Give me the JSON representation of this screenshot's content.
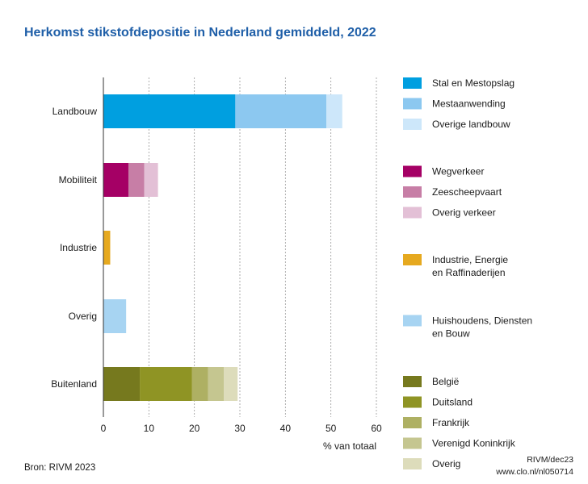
{
  "chart_data": {
    "type": "bar",
    "orientation": "horizontal",
    "stacked": true,
    "title": "Herkomst stikstofdepositie in Nederland gemiddeld, 2022",
    "xlabel": "% van totaal",
    "ylabel": "",
    "xlim": [
      0,
      60
    ],
    "xticks": [
      0,
      10,
      20,
      30,
      40,
      50,
      60
    ],
    "grid": "vertical",
    "legend_position": "right",
    "categories": [
      "Landbouw",
      "Mobiliteit",
      "Industrie",
      "Overig",
      "Buitenland"
    ],
    "series": [
      {
        "name": "Stal en Mestopslag",
        "category": "Landbouw",
        "value": 29,
        "color": "#009fe0"
      },
      {
        "name": "Mestaanwending",
        "category": "Landbouw",
        "value": 20,
        "color": "#8cc8f0"
      },
      {
        "name": "Overige landbouw",
        "category": "Landbouw",
        "value": 3.5,
        "color": "#cde7fa"
      },
      {
        "name": "Wegverkeer",
        "category": "Mobiliteit",
        "value": 5.5,
        "color": "#a50065"
      },
      {
        "name": "Zeescheepvaart",
        "category": "Mobiliteit",
        "value": 3.5,
        "color": "#c77ea6"
      },
      {
        "name": "Overig verkeer",
        "category": "Mobiliteit",
        "value": 3,
        "color": "#e3c0d6"
      },
      {
        "name": "Industrie, Energie en Raffinaderijen",
        "label_lines": [
          "Industrie, Energie",
          "en Raffinaderijen"
        ],
        "category": "Industrie",
        "value": 1.5,
        "color": "#e6a91f"
      },
      {
        "name": "Huishoudens, Diensten en Bouw",
        "label_lines": [
          "Huishoudens, Diensten",
          "en Bouw"
        ],
        "category": "Overig",
        "value": 5,
        "color": "#a7d4f2"
      },
      {
        "name": "België",
        "category": "Buitenland",
        "value": 8,
        "color": "#76791e"
      },
      {
        "name": "Duitsland",
        "category": "Buitenland",
        "value": 11.5,
        "color": "#8f9424"
      },
      {
        "name": "Frankrijk",
        "category": "Buitenland",
        "value": 3.5,
        "color": "#aeb063"
      },
      {
        "name": "Verenigd Koninkrijk",
        "category": "Buitenland",
        "value": 3.5,
        "color": "#c5c690"
      },
      {
        "name": "Overig",
        "category": "Buitenland",
        "value": 3,
        "color": "#dddcbb"
      }
    ]
  },
  "source": "Bron: RIVM 2023",
  "credit_line1": "RIVM/dec23",
  "credit_line2": "www.clo.nl/nl050714"
}
